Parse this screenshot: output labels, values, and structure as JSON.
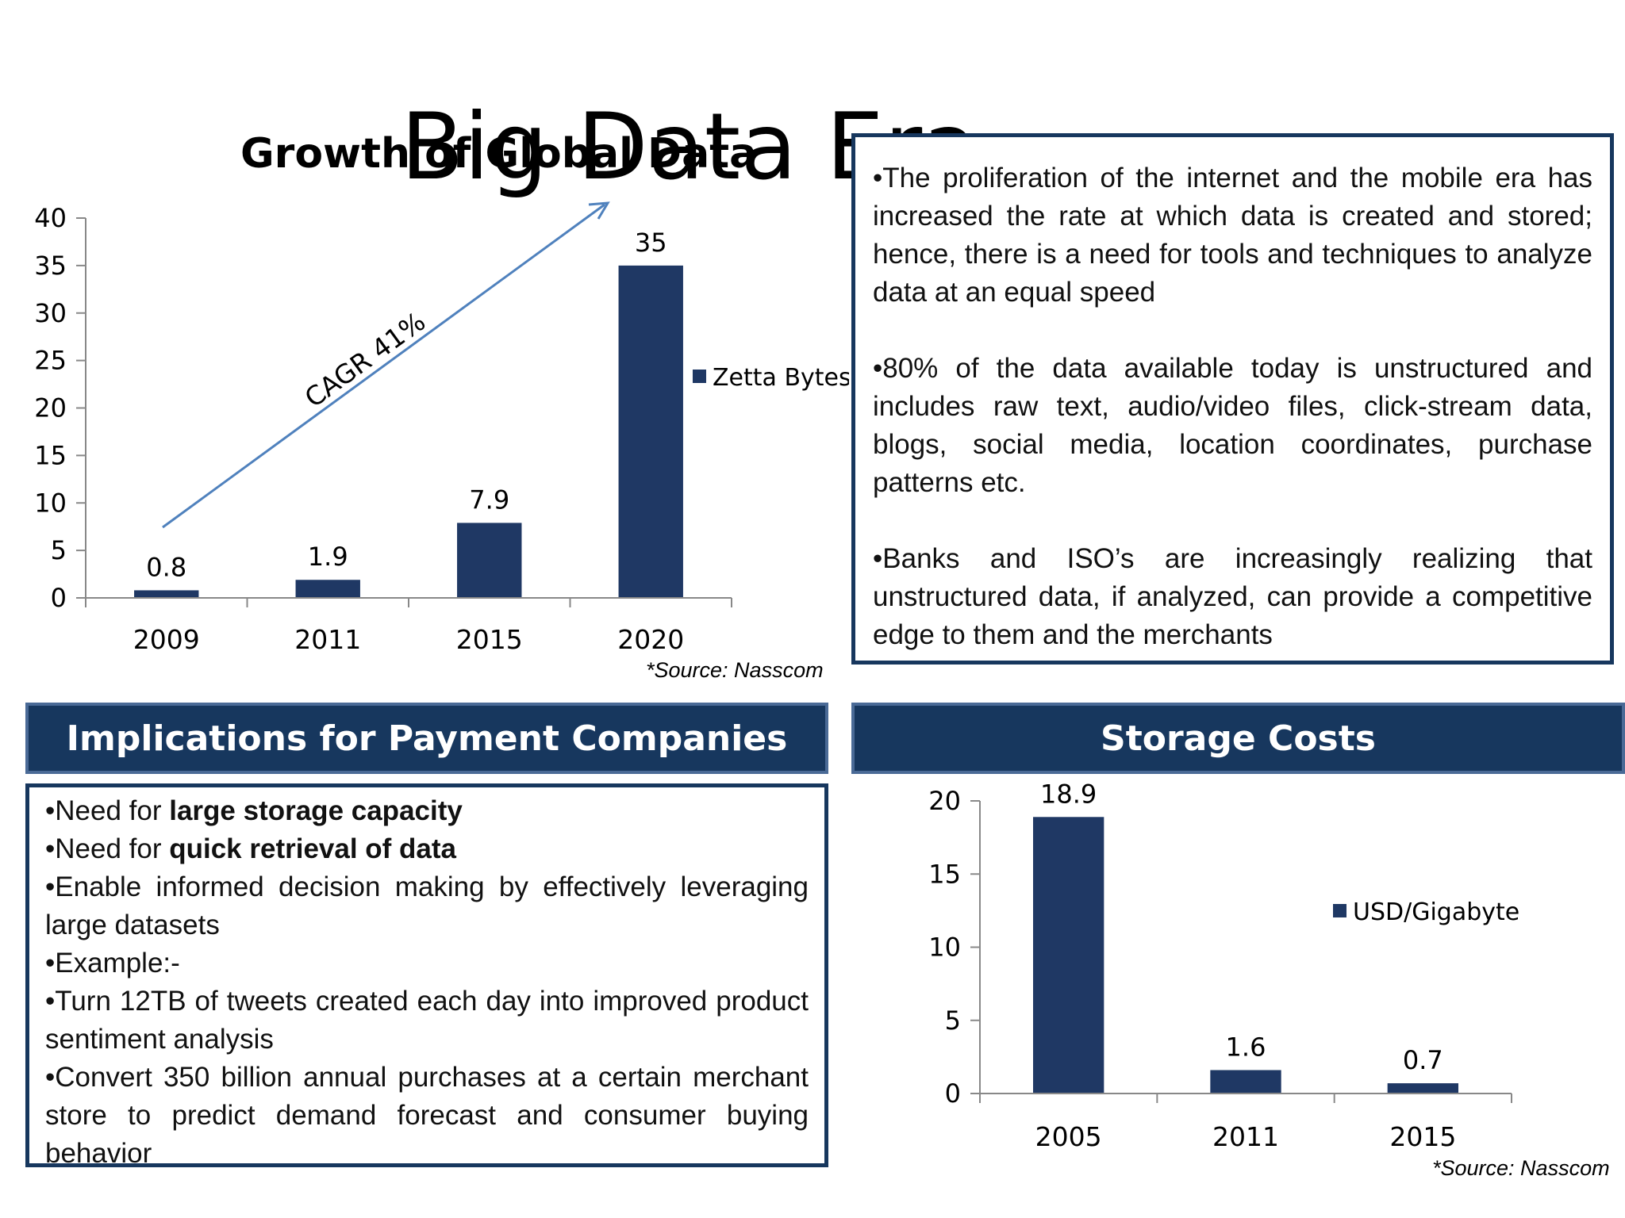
{
  "slide": {
    "title": "Big Data Era"
  },
  "growth_chart": {
    "title": "Growth of Global Data",
    "legend": "Zetta Bytes",
    "source": "*Source: Nasscom",
    "annotation": "CAGR 41%"
  },
  "info_box": {
    "bullets": [
      "•The proliferation of the internet and the mobile era has increased the rate at which data is created and stored; hence, there is a need for tools and techniques to analyze data at an equal speed",
      "•80% of the data available today is unstructured and includes raw text, audio/video files, click-stream data, blogs, social media, location coordinates, purchase patterns etc.",
      "•Banks and ISO’s are increasingly realizing that unstructured data, if analyzed, can provide a competitive edge to them and the merchants"
    ]
  },
  "implications": {
    "header": "Implications for Payment Companies",
    "line1_prefix": "•Need for ",
    "line1_bold": "large storage capacity",
    "line2_prefix": "•Need for ",
    "line2_bold": "quick retrieval of data",
    "line3": "•Enable informed decision making by effectively leveraging large datasets",
    "line4": "•Example:-",
    "line5": "•Turn 12TB of tweets created each day into improved product sentiment analysis",
    "line6": "•Convert 350 billion annual purchases at a certain merchant store to predict demand forecast and consumer buying behavior"
  },
  "storage": {
    "header": "Storage Costs",
    "legend": "USD/Gigabyte",
    "source": "*Source: Nasscom"
  },
  "colors": {
    "bar": "#1f3864",
    "header_bg": "#17375e",
    "arrow": "#4f81bd"
  },
  "chart_data": [
    {
      "type": "bar",
      "title": "Growth of Global Data",
      "categories": [
        "2009",
        "2011",
        "2015",
        "2020"
      ],
      "series": [
        {
          "name": "Zetta Bytes",
          "values": [
            0.8,
            1.9,
            7.9,
            35
          ]
        }
      ],
      "data_labels": [
        "0.8",
        "1.9",
        "7.9",
        "35"
      ],
      "ylim": [
        0,
        40
      ],
      "yticks": [
        0,
        5,
        10,
        15,
        20,
        25,
        30,
        35,
        40
      ],
      "legend": "right",
      "grid": false
    },
    {
      "type": "bar",
      "title": "Storage Costs",
      "categories": [
        "2005",
        "2011",
        "2015"
      ],
      "series": [
        {
          "name": "USD/Gigabyte",
          "values": [
            18.9,
            1.6,
            0.7
          ]
        }
      ],
      "data_labels": [
        "18.9",
        "1.6",
        "0.7"
      ],
      "ylim": [
        0,
        20
      ],
      "yticks": [
        0,
        5,
        10,
        15,
        20
      ],
      "legend": "right",
      "grid": false
    }
  ]
}
